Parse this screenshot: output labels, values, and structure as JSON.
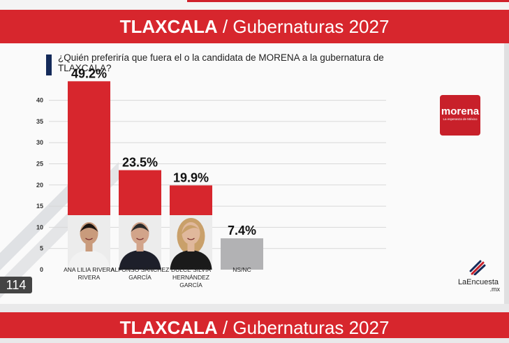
{
  "header": {
    "state": "TLAXCALA",
    "separator": " / ",
    "subtitle": "Gubernaturas 2027"
  },
  "footer_banner": {
    "state": "TLAXCALA",
    "separator": " / ",
    "subtitle": "Gubernaturas 2027"
  },
  "question": "¿Quién preferiría que fuera el o la candidata de MORENA a la gubernatura de TLAXCALA?",
  "badge": "114",
  "logos": {
    "morena_word": "morena",
    "morena_tag": "La esperanza de México",
    "pollster_name": "LaEncuesta",
    "pollster_domain": ".mx"
  },
  "colors": {
    "bar": "#d7262d",
    "nsnc": "#b2b2b4",
    "banner": "#d7262d",
    "accent": "#142a59"
  },
  "chart_data": {
    "type": "bar",
    "title": "",
    "xlabel": "",
    "ylabel": "",
    "ylim": [
      0,
      40
    ],
    "yticks": [
      0,
      5,
      10,
      15,
      20,
      25,
      30,
      35,
      40
    ],
    "grid": true,
    "categories": [
      [
        "ANA LILIA RIVERA",
        "RIVERA"
      ],
      [
        "ALFONSO SÁNCHEZ",
        "GARCÍA"
      ],
      [
        "DULCE SILVIA",
        "HERNÁNDEZ",
        "GARCÍA"
      ],
      [
        "NS/NC"
      ]
    ],
    "values": [
      49.2,
      23.5,
      19.9,
      7.4
    ],
    "value_labels": [
      "49.2%",
      "23.5%",
      "19.9%",
      "7.4%"
    ],
    "bar_colors": [
      "#d7262d",
      "#d7262d",
      "#d7262d",
      "#b2b2b4"
    ]
  }
}
